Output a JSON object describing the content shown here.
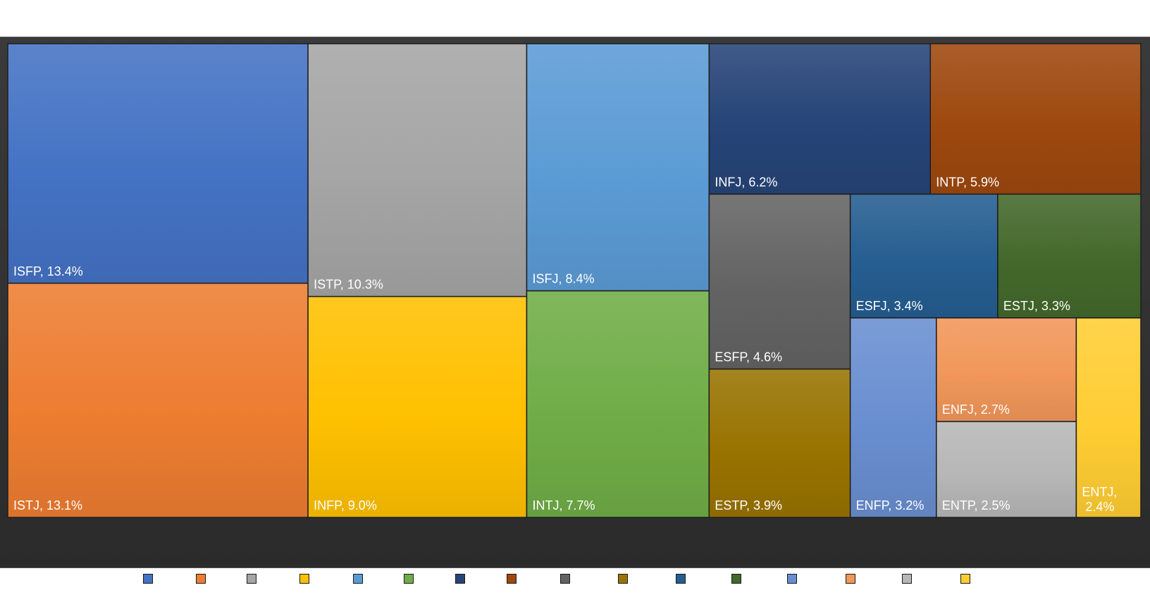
{
  "chart_data": {
    "type": "treemap",
    "unit": "%",
    "items": [
      {
        "name": "ISFP",
        "value": 13.4,
        "label": "ISFP, 13.4%",
        "color": "#4472C4"
      },
      {
        "name": "ISTJ",
        "value": 13.1,
        "label": "ISTJ, 13.1%",
        "color": "#ED7D31"
      },
      {
        "name": "ISTP",
        "value": 10.3,
        "label": "ISTP, 10.3%",
        "color": "#A5A5A5"
      },
      {
        "name": "INFP",
        "value": 9.0,
        "label": "INFP, 9.0%",
        "color": "#FFC000"
      },
      {
        "name": "ISFJ",
        "value": 8.4,
        "label": "ISFJ, 8.4%",
        "color": "#5B9BD5"
      },
      {
        "name": "INTJ",
        "value": 7.7,
        "label": "INTJ, 7.7%",
        "color": "#70AD47"
      },
      {
        "name": "INFJ",
        "value": 6.2,
        "label": "INFJ, 6.2%",
        "color": "#264478"
      },
      {
        "name": "INTP",
        "value": 5.9,
        "label": "INTP, 5.9%",
        "color": "#9E480E"
      },
      {
        "name": "ESFP",
        "value": 4.6,
        "label": "ESFP, 4.6%",
        "color": "#636363"
      },
      {
        "name": "ESTP",
        "value": 3.9,
        "label": "ESTP, 3.9%",
        "color": "#997300"
      },
      {
        "name": "ESFJ",
        "value": 3.4,
        "label": "ESFJ, 3.4%",
        "color": "#255E91"
      },
      {
        "name": "ESTJ",
        "value": 3.3,
        "label": "ESTJ, 3.3%",
        "color": "#43682B"
      },
      {
        "name": "ENFP",
        "value": 3.2,
        "label": "ENFP, 3.2%",
        "color": "#698ED0"
      },
      {
        "name": "ENFJ",
        "value": 2.7,
        "label": "ENFJ, 2.7%",
        "color": "#F1975A"
      },
      {
        "name": "ENTP",
        "value": 2.5,
        "label": "ENTP, 2.5%",
        "color": "#B7B7B7"
      },
      {
        "name": "ENTJ",
        "value": 2.4,
        "label": "ENTJ, 2.4%",
        "color": "#FFCD33"
      }
    ],
    "legend_position": "bottom"
  }
}
